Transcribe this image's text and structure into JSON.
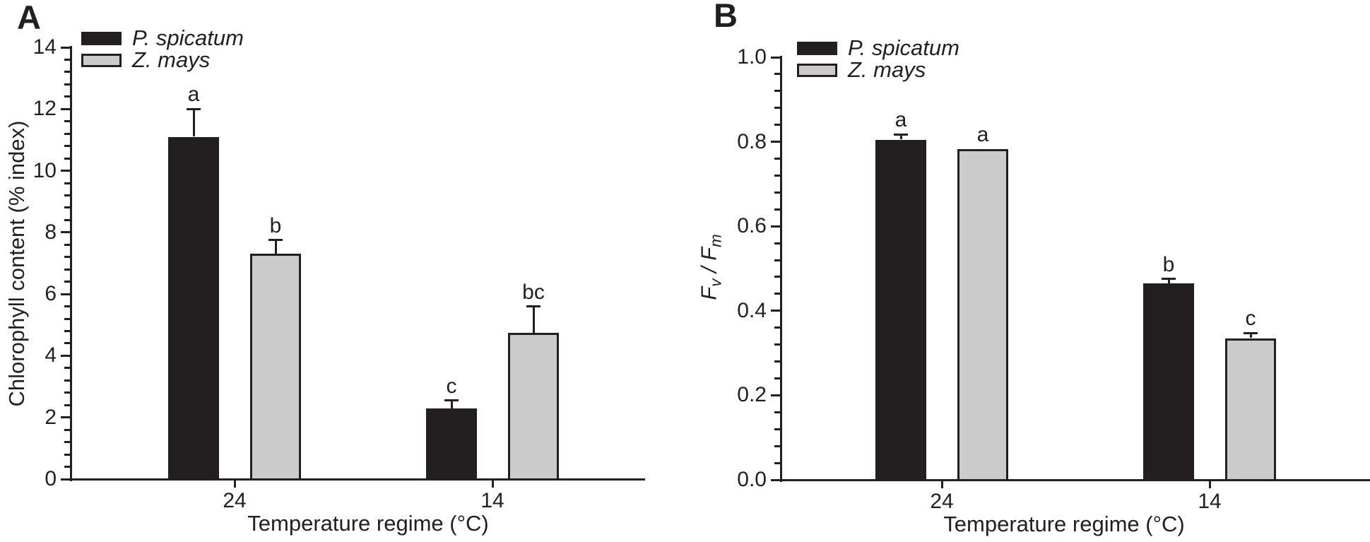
{
  "figure": {
    "background": "#ffffff",
    "colors": {
      "black_series": "#231f20",
      "gray_series": "#cbcbcb",
      "axis": "#231f20"
    }
  },
  "chart_data": [
    {
      "type": "bar",
      "panel_label": "A",
      "xlabel": "Temperature regime (°C)",
      "ylabel": "Chlorophyll content (% index)",
      "ylim": [
        0,
        14
      ],
      "ytick_step": 2,
      "yticks": [
        "0",
        "2",
        "4",
        "6",
        "8",
        "10",
        "12",
        "14"
      ],
      "minor_ticks_per_interval": 4,
      "categories": [
        "24",
        "14"
      ],
      "legend": [
        {
          "name": "P. spicatum",
          "color": "#231f20"
        },
        {
          "name": "Z. mays",
          "color": "#cbcbcb"
        }
      ],
      "series": [
        {
          "name": "P. spicatum",
          "values": [
            11.1,
            2.3
          ],
          "errors": [
            0.9,
            0.25
          ],
          "sig_letters": [
            "a",
            "c"
          ]
        },
        {
          "name": "Z. mays",
          "values": [
            7.3,
            4.75
          ],
          "errors": [
            0.45,
            0.85
          ],
          "sig_letters": [
            "b",
            "bc"
          ]
        }
      ],
      "legend_position": "top-left-inside",
      "grid": false
    },
    {
      "type": "bar",
      "panel_label": "B",
      "xlabel": "Temperature regime (°C)",
      "ylabel": "Fv / Fm",
      "ylabel_segments": [
        {
          "text": "F",
          "sub": "v"
        },
        {
          "text": " / ",
          "sub": ""
        },
        {
          "text": "F",
          "sub": "m"
        }
      ],
      "ylim": [
        0,
        1.0
      ],
      "ytick_step": 0.2,
      "yticks": [
        "0.0",
        "0.2",
        "0.4",
        "0.6",
        "0.8",
        "1.0"
      ],
      "minor_ticks_per_interval": 4,
      "categories": [
        "24",
        "14"
      ],
      "legend": [
        {
          "name": "P. spicatum",
          "color": "#231f20"
        },
        {
          "name": "Z. mays",
          "color": "#cbcbcb"
        }
      ],
      "series": [
        {
          "name": "P. spicatum",
          "values": [
            0.805,
            0.465
          ],
          "errors": [
            0.012,
            0.01
          ],
          "sig_letters": [
            "a",
            "b"
          ]
        },
        {
          "name": "Z. mays",
          "values": [
            0.783,
            0.335
          ],
          "errors": [
            0,
            0.012
          ],
          "sig_letters": [
            "a",
            "c"
          ]
        }
      ],
      "legend_position": "top-left-inside",
      "grid": false
    }
  ]
}
